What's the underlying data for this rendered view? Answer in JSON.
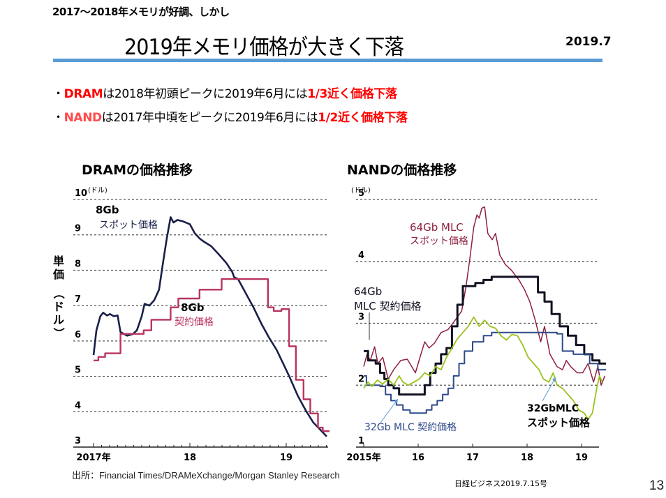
{
  "header": {
    "subtitle": "2017～2018年メモリが好調、しかし",
    "title": "2019年メモリ価格が大きく下落",
    "date": "2019.7"
  },
  "bullets": [
    {
      "dot": "・",
      "subject": "DRAM",
      "text": "は2018年初頭ピークに2019年6月には",
      "highlight": "1/3近く価格下落"
    },
    {
      "dot": "・",
      "subject": "NAND",
      "text": "は2017年中頃をピークに2019年6月には",
      "highlight": "1/2近く価格下落"
    }
  ],
  "colors": {
    "accent_rule": "#5B9BD5",
    "highlight_red": "#FF0000",
    "nand_subject": "#FF4B4B",
    "dram_spot": "#1A1F4A",
    "dram_contract": "#B8345E",
    "nand_64_contract": "#111122",
    "nand_64_spot": "#8E1F3E",
    "nand_32_contract": "#2E4A8A",
    "nand_32_spot": "#99C21C",
    "callout_arrow": "#5B9BD5"
  },
  "y_axis_label": [
    "単",
    "価",
    "（",
    "ド",
    "ル",
    "）"
  ],
  "source": "出所：Financial Times/DRAMeXchange/Morgan Stanley Research",
  "credit": "日経ビジネス2019.7.15号",
  "page_number": "13",
  "chart_data": [
    {
      "type": "line",
      "title": "DRAMの価格推移",
      "unit_label": "(ドル)",
      "xlabel": "",
      "ylabel": "単価（ドル）",
      "xlim": [
        2016.78,
        2019.48
      ],
      "ylim": [
        3,
        10
      ],
      "yticks": [
        3,
        4,
        5,
        6,
        7,
        8,
        9,
        10
      ],
      "xticks": [
        {
          "value": 2017,
          "label": "2017年"
        },
        {
          "value": 2018,
          "label": "18"
        },
        {
          "value": 2019,
          "label": "19"
        }
      ],
      "grid": true,
      "series": [
        {
          "name": "8Gb スポット価格",
          "label_line1": "8Gb",
          "label_line2": "スポット価格",
          "color": "#1A1F4A",
          "step": false,
          "points": [
            [
              2017.0,
              5.6
            ],
            [
              2017.03,
              6.3
            ],
            [
              2017.07,
              6.7
            ],
            [
              2017.1,
              6.8
            ],
            [
              2017.14,
              6.72
            ],
            [
              2017.17,
              6.76
            ],
            [
              2017.21,
              6.7
            ],
            [
              2017.25,
              6.72
            ],
            [
              2017.28,
              6.25
            ],
            [
              2017.35,
              6.15
            ],
            [
              2017.41,
              6.2
            ],
            [
              2017.45,
              6.3
            ],
            [
              2017.5,
              6.7
            ],
            [
              2017.53,
              7.05
            ],
            [
              2017.58,
              7.0
            ],
            [
              2017.63,
              7.15
            ],
            [
              2017.68,
              7.45
            ],
            [
              2017.72,
              8.2
            ],
            [
              2017.76,
              8.9
            ],
            [
              2017.8,
              9.5
            ],
            [
              2017.83,
              9.35
            ],
            [
              2017.87,
              9.42
            ],
            [
              2017.93,
              9.38
            ],
            [
              2018.0,
              9.3
            ],
            [
              2018.05,
              9.05
            ],
            [
              2018.1,
              8.9
            ],
            [
              2018.15,
              8.8
            ],
            [
              2018.22,
              8.68
            ],
            [
              2018.3,
              8.45
            ],
            [
              2018.38,
              8.2
            ],
            [
              2018.44,
              7.95
            ],
            [
              2018.46,
              7.8
            ],
            [
              2018.5,
              7.75
            ],
            [
              2018.58,
              7.35
            ],
            [
              2018.66,
              6.95
            ],
            [
              2018.74,
              6.5
            ],
            [
              2018.82,
              6.1
            ],
            [
              2018.9,
              5.75
            ],
            [
              2018.97,
              5.35
            ],
            [
              2019.04,
              4.95
            ],
            [
              2019.12,
              4.45
            ],
            [
              2019.2,
              4.05
            ],
            [
              2019.28,
              3.7
            ],
            [
              2019.35,
              3.5
            ],
            [
              2019.42,
              3.3
            ]
          ]
        },
        {
          "name": "8Gb 契約価格",
          "label_line1": "8Gb",
          "label_line2": "契約価格",
          "color": "#B8345E",
          "step": true,
          "points": [
            [
              2017.0,
              5.45
            ],
            [
              2017.05,
              5.55
            ],
            [
              2017.12,
              5.65
            ],
            [
              2017.28,
              6.2
            ],
            [
              2017.52,
              6.3
            ],
            [
              2017.6,
              6.6
            ],
            [
              2017.8,
              6.95
            ],
            [
              2017.88,
              7.2
            ],
            [
              2018.1,
              7.45
            ],
            [
              2018.33,
              7.75
            ],
            [
              2018.81,
              6.95
            ],
            [
              2018.87,
              6.85
            ],
            [
              2018.95,
              6.9
            ],
            [
              2019.03,
              5.85
            ],
            [
              2019.1,
              4.9
            ],
            [
              2019.18,
              4.35
            ],
            [
              2019.25,
              3.95
            ],
            [
              2019.33,
              3.55
            ],
            [
              2019.38,
              3.45
            ],
            [
              2019.45,
              3.45
            ]
          ]
        }
      ]
    },
    {
      "type": "line",
      "title": "NANDの価格推移",
      "unit_label": "(ドル)",
      "xlabel": "",
      "ylabel": "単価（ドル）",
      "xlim": [
        2014.7,
        2019.47
      ],
      "ylim": [
        1,
        5
      ],
      "yticks": [
        1,
        2,
        3,
        4,
        5
      ],
      "xticks": [
        {
          "value": 2015,
          "label": "2015年"
        },
        {
          "value": 2016,
          "label": "16"
        },
        {
          "value": 2017,
          "label": "17"
        },
        {
          "value": 2018,
          "label": "18"
        },
        {
          "value": 2019,
          "label": "19"
        }
      ],
      "grid": true,
      "series": [
        {
          "name": "64Gb MLC スポット価格",
          "label_line1": "64Gb MLC",
          "label_line2": "スポット価格",
          "color": "#8E1F3E",
          "step": false,
          "points": [
            [
              2015.0,
              2.3
            ],
            [
              2015.06,
              2.5
            ],
            [
              2015.12,
              2.4
            ],
            [
              2015.2,
              2.62
            ],
            [
              2015.26,
              2.35
            ],
            [
              2015.35,
              2.45
            ],
            [
              2015.45,
              2.1
            ],
            [
              2015.55,
              2.25
            ],
            [
              2015.68,
              2.4
            ],
            [
              2015.8,
              2.42
            ],
            [
              2015.95,
              2.2
            ],
            [
              2016.05,
              2.5
            ],
            [
              2016.12,
              2.7
            ],
            [
              2016.2,
              2.6
            ],
            [
              2016.3,
              2.68
            ],
            [
              2016.42,
              2.85
            ],
            [
              2016.55,
              2.9
            ],
            [
              2016.68,
              3.05
            ],
            [
              2016.8,
              3.2
            ],
            [
              2016.88,
              3.6
            ],
            [
              2016.95,
              4.05
            ],
            [
              2017.02,
              4.55
            ],
            [
              2017.08,
              4.75
            ],
            [
              2017.12,
              4.7
            ],
            [
              2017.17,
              4.86
            ],
            [
              2017.22,
              4.88
            ],
            [
              2017.28,
              4.45
            ],
            [
              2017.36,
              4.35
            ],
            [
              2017.42,
              4.45
            ],
            [
              2017.5,
              4.1
            ],
            [
              2017.6,
              3.95
            ],
            [
              2017.72,
              3.85
            ],
            [
              2017.85,
              3.7
            ],
            [
              2017.95,
              3.55
            ],
            [
              2018.05,
              3.35
            ],
            [
              2018.15,
              3.05
            ],
            [
              2018.25,
              2.7
            ],
            [
              2018.32,
              2.95
            ],
            [
              2018.42,
              2.5
            ],
            [
              2018.55,
              2.3
            ],
            [
              2018.65,
              2.25
            ],
            [
              2018.72,
              2.4
            ],
            [
              2018.8,
              2.3
            ],
            [
              2018.92,
              2.2
            ],
            [
              2019.02,
              2.2
            ],
            [
              2019.12,
              2.35
            ],
            [
              2019.22,
              2.05
            ],
            [
              2019.3,
              2.3
            ],
            [
              2019.36,
              2.0
            ],
            [
              2019.43,
              2.15
            ]
          ]
        },
        {
          "name": "64Gb MLC 契約価格",
          "label_line1": "64Gb",
          "label_line2": "MLC 契約価格",
          "color": "#111122",
          "step": true,
          "points": [
            [
              2015.0,
              2.55
            ],
            [
              2015.08,
              2.4
            ],
            [
              2015.22,
              2.35
            ],
            [
              2015.3,
              2.2
            ],
            [
              2015.38,
              2.1
            ],
            [
              2015.45,
              2.0
            ],
            [
              2015.55,
              1.95
            ],
            [
              2015.65,
              1.85
            ],
            [
              2016.05,
              1.85
            ],
            [
              2016.12,
              2.0
            ],
            [
              2016.22,
              2.2
            ],
            [
              2016.32,
              2.35
            ],
            [
              2016.42,
              2.5
            ],
            [
              2016.52,
              2.6
            ],
            [
              2016.62,
              2.95
            ],
            [
              2016.72,
              3.3
            ],
            [
              2016.82,
              3.6
            ],
            [
              2017.05,
              3.65
            ],
            [
              2017.2,
              3.7
            ],
            [
              2017.35,
              3.75
            ],
            [
              2018.2,
              3.5
            ],
            [
              2018.32,
              3.35
            ],
            [
              2018.45,
              3.15
            ],
            [
              2018.6,
              2.95
            ],
            [
              2018.75,
              2.8
            ],
            [
              2018.9,
              2.65
            ],
            [
              2019.05,
              2.5
            ],
            [
              2019.2,
              2.4
            ],
            [
              2019.33,
              2.35
            ],
            [
              2019.45,
              2.35
            ]
          ]
        },
        {
          "name": "32Gb MLC 契約価格",
          "label_line1": "32Gb MLC 契約価格",
          "label_line2": "",
          "color": "#2E4A8A",
          "step": true,
          "points": [
            [
              2015.0,
              2.15
            ],
            [
              2015.05,
              2.0
            ],
            [
              2015.3,
              1.98
            ],
            [
              2015.4,
              1.85
            ],
            [
              2015.5,
              1.75
            ],
            [
              2015.6,
              1.68
            ],
            [
              2015.72,
              1.6
            ],
            [
              2015.85,
              1.55
            ],
            [
              2016.15,
              1.6
            ],
            [
              2016.25,
              1.68
            ],
            [
              2016.35,
              1.75
            ],
            [
              2016.45,
              1.85
            ],
            [
              2016.55,
              1.95
            ],
            [
              2016.65,
              2.15
            ],
            [
              2016.75,
              2.35
            ],
            [
              2016.85,
              2.55
            ],
            [
              2017.0,
              2.7
            ],
            [
              2017.2,
              2.8
            ],
            [
              2017.35,
              2.85
            ],
            [
              2018.55,
              2.83
            ],
            [
              2018.65,
              2.55
            ],
            [
              2018.85,
              2.5
            ],
            [
              2019.05,
              2.5
            ],
            [
              2019.15,
              2.35
            ],
            [
              2019.3,
              2.25
            ],
            [
              2019.45,
              2.25
            ]
          ]
        },
        {
          "name": "32GbMLC スポット価格",
          "label_line1": "32GbMLC",
          "label_line2": "スポット価格",
          "color": "#99C21C",
          "step": false,
          "points": [
            [
              2015.0,
              1.95
            ],
            [
              2015.08,
              2.05
            ],
            [
              2015.15,
              1.98
            ],
            [
              2015.25,
              2.08
            ],
            [
              2015.35,
              2.02
            ],
            [
              2015.45,
              2.1
            ],
            [
              2015.55,
              2.0
            ],
            [
              2015.65,
              2.15
            ],
            [
              2015.72,
              2.05
            ],
            [
              2015.82,
              2.0
            ],
            [
              2015.92,
              2.05
            ],
            [
              2016.02,
              2.1
            ],
            [
              2016.12,
              2.2
            ],
            [
              2016.22,
              2.15
            ],
            [
              2016.32,
              2.3
            ],
            [
              2016.42,
              2.25
            ],
            [
              2016.52,
              2.45
            ],
            [
              2016.62,
              2.6
            ],
            [
              2016.72,
              2.75
            ],
            [
              2016.82,
              2.85
            ],
            [
              2016.92,
              2.95
            ],
            [
              2017.02,
              3.1
            ],
            [
              2017.12,
              2.95
            ],
            [
              2017.22,
              3.05
            ],
            [
              2017.32,
              2.95
            ],
            [
              2017.42,
              2.92
            ],
            [
              2017.52,
              2.8
            ],
            [
              2017.62,
              2.73
            ],
            [
              2017.72,
              2.82
            ],
            [
              2017.82,
              2.8
            ],
            [
              2017.92,
              2.65
            ],
            [
              2018.02,
              2.45
            ],
            [
              2018.12,
              2.35
            ],
            [
              2018.22,
              2.25
            ],
            [
              2018.3,
              2.1
            ],
            [
              2018.4,
              2.05
            ],
            [
              2018.48,
              2.2
            ],
            [
              2018.55,
              2.0
            ],
            [
              2018.65,
              1.95
            ],
            [
              2018.75,
              1.85
            ],
            [
              2018.85,
              1.75
            ],
            [
              2018.95,
              1.6
            ],
            [
              2019.05,
              1.55
            ],
            [
              2019.12,
              1.45
            ],
            [
              2019.2,
              1.55
            ],
            [
              2019.28,
              1.95
            ],
            [
              2019.33,
              2.15
            ],
            [
              2019.38,
              2.05
            ]
          ]
        }
      ]
    }
  ]
}
